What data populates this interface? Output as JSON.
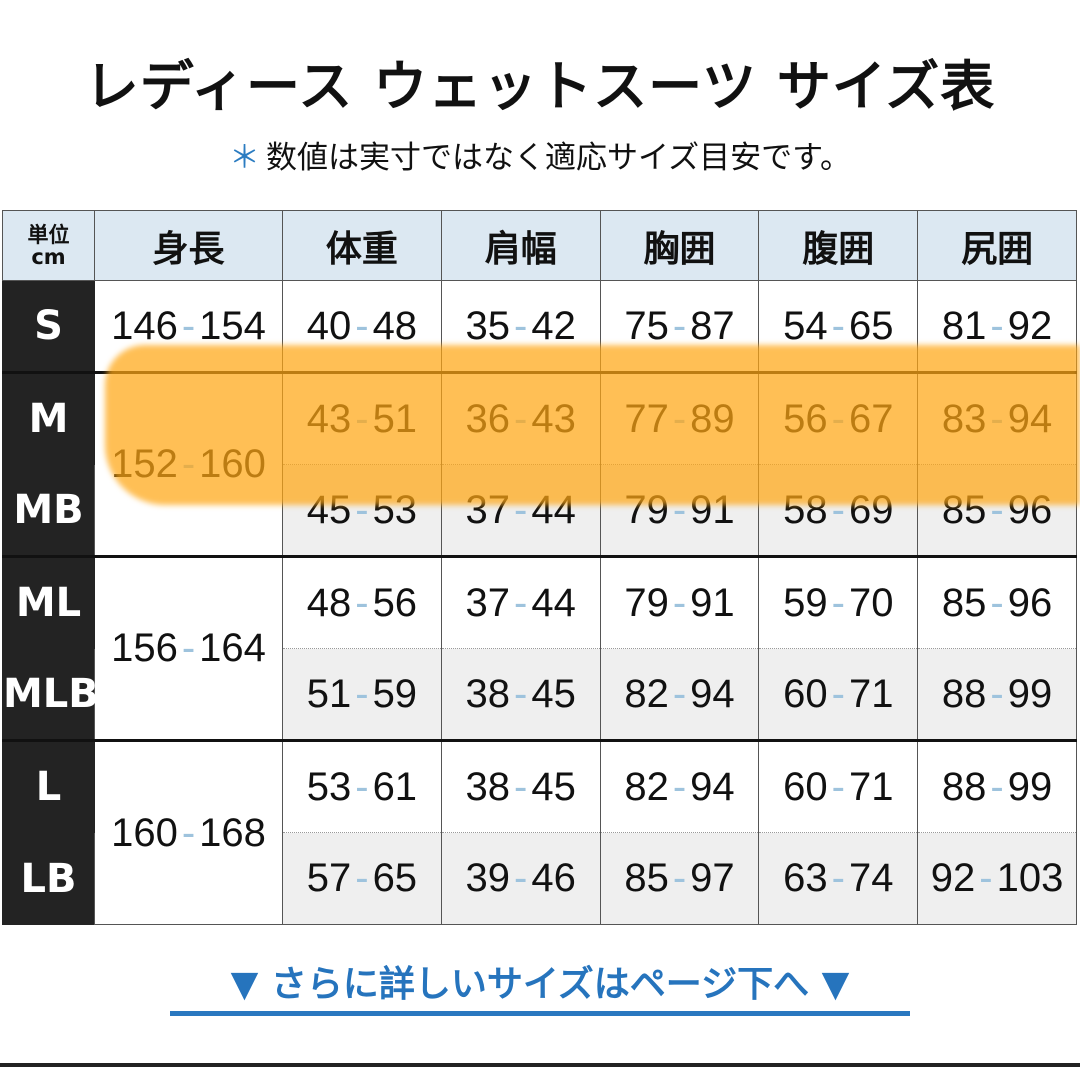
{
  "title": "レディース ウェットスーツ サイズ表",
  "subtitle": {
    "asterisk": "＊",
    "text": "数値は実寸ではなく適応サイズ目安です。"
  },
  "table": {
    "unit_label": [
      "単位",
      "cm"
    ],
    "headers": [
      "身長",
      "体重",
      "肩幅",
      "胸囲",
      "腹囲",
      "尻囲"
    ],
    "rows": [
      {
        "size": "S",
        "height": [
          "146",
          "154"
        ],
        "vals": [
          [
            "40",
            "48"
          ],
          [
            "35",
            "42"
          ],
          [
            "75",
            "87"
          ],
          [
            "54",
            "65"
          ],
          [
            "81",
            "92"
          ]
        ]
      },
      {
        "size": "M",
        "height": [
          "152",
          "160"
        ],
        "vals": [
          [
            "43",
            "51"
          ],
          [
            "36",
            "43"
          ],
          [
            "77",
            "89"
          ],
          [
            "56",
            "67"
          ],
          [
            "83",
            "94"
          ]
        ]
      },
      {
        "size": "MB",
        "vals": [
          [
            "45",
            "53"
          ],
          [
            "37",
            "44"
          ],
          [
            "79",
            "91"
          ],
          [
            "58",
            "69"
          ],
          [
            "85",
            "96"
          ]
        ]
      },
      {
        "size": "ML",
        "height": [
          "156",
          "164"
        ],
        "vals": [
          [
            "48",
            "56"
          ],
          [
            "37",
            "44"
          ],
          [
            "79",
            "91"
          ],
          [
            "59",
            "70"
          ],
          [
            "85",
            "96"
          ]
        ]
      },
      {
        "size": "MLB",
        "vals": [
          [
            "51",
            "59"
          ],
          [
            "38",
            "45"
          ],
          [
            "82",
            "94"
          ],
          [
            "60",
            "71"
          ],
          [
            "88",
            "99"
          ]
        ]
      },
      {
        "size": "L",
        "height": [
          "160",
          "168"
        ],
        "vals": [
          [
            "53",
            "61"
          ],
          [
            "38",
            "45"
          ],
          [
            "82",
            "94"
          ],
          [
            "60",
            "71"
          ],
          [
            "88",
            "99"
          ]
        ]
      },
      {
        "size": "LB",
        "vals": [
          [
            "57",
            "65"
          ],
          [
            "39",
            "46"
          ],
          [
            "85",
            "97"
          ],
          [
            "63",
            "74"
          ],
          [
            "92",
            "103"
          ]
        ]
      }
    ],
    "highlighted_sizes": [
      "M",
      "MB"
    ]
  },
  "footer_link": {
    "arrow": "▼",
    "text": "さらに詳しいサイズはページ下へ"
  },
  "colors": {
    "accent_blue": "#2674bd",
    "highlight": "#ffa614",
    "header_bg": "#dce8f2",
    "size_bg": "#232323"
  }
}
